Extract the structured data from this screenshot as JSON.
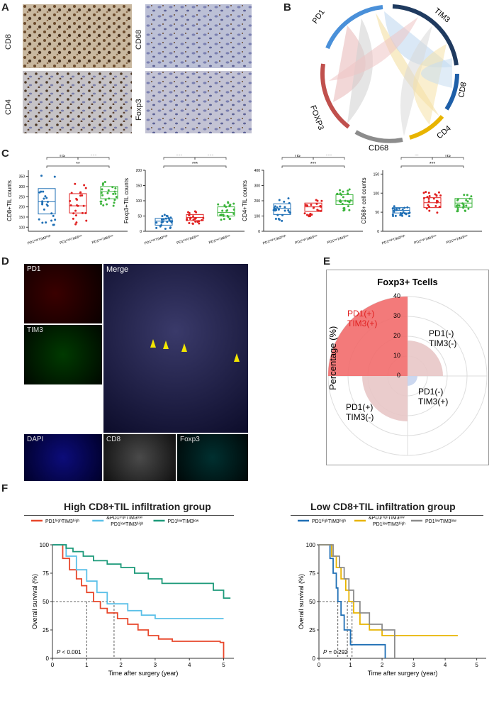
{
  "panels": {
    "A": "A",
    "B": "B",
    "C": "C",
    "D": "D",
    "E": "E",
    "F": "F"
  },
  "panel_a": {
    "labels": [
      "CD8",
      "CD68",
      "CD4",
      "Foxp3"
    ]
  },
  "panel_b": {
    "segments": [
      "PD1",
      "TIM3",
      "CD8",
      "CD4",
      "CD68",
      "FOXP3"
    ],
    "colors": {
      "PD1": "#4a90d9",
      "TIM3": "#1f3a5f",
      "CD8": "#1e5fa8",
      "CD4": "#e8b400",
      "CD68": "#8c8c8c",
      "FOXP3": "#c0504d"
    }
  },
  "panel_c": {
    "groups_short": [
      "PD1ʰⁱᵍʰTIM3ʰⁱᵍʰ",
      "PD1ʰⁱᵍʰTIM3ˡᵒʷ / PD1ˡᵒʷTIM3ʰⁱᵍʰ",
      "PD1ˡᵒʷTIM3ˡᵒʷ"
    ],
    "ns": "ns",
    "two_star": "**",
    "three_star": "***"
  },
  "panel_d": {
    "labels": [
      "PD1",
      "Merge",
      "TIM3",
      "DAPI",
      "CD8",
      "Foxp3"
    ]
  },
  "panel_e": {
    "title": "Foxp3+ Tcells",
    "ylabel": "Percentage (%)",
    "ticks": [
      "0",
      "10",
      "20",
      "30",
      "40"
    ],
    "label_pp_1": "PD1(+)",
    "label_pp_2": "TIM3(+)",
    "label_nn_1": "PD1(-)",
    "label_nn_2": "TIM3(-)",
    "label_np_1": "PD1(-)",
    "label_np_2": "TIM3(+)",
    "label_pn_1": "PD1(+)",
    "label_pn_2": "TIM3(-)"
  },
  "panel_f": {
    "left_title": "High CD8+TIL infiltration group",
    "right_title": "Low CD8+TIL infiltration group",
    "ylabel": "Overall survival (%)",
    "xlabel": "Time after surgery (year)",
    "left_p": "< 0.001",
    "right_p": "= 0.292",
    "p_letter": "P",
    "legend_left": [
      "PD1ʰⁱᵍʰTIM3ʰⁱᵍʰ",
      "&",
      "PD1ʰⁱᵍʰTIM3ˡᵒʷ",
      "PD1ˡᵒʷTIM3ʰⁱᵍʰ",
      "PD1ˡᵒʷTIM3ˡᵒʷ"
    ],
    "legend_right": [
      "PD1ʰⁱᵍʰTIM3ʰⁱᵍʰ",
      "&",
      "PD1ʰⁱᵍʰTIM3ˡᵒʷ",
      "PD1ˡᵒʷTIM3ʰⁱᵍʰ",
      "PD1ˡᵒʷTIM3ˡᵒʷ"
    ]
  },
  "chart_data": [
    {
      "type": "scatter",
      "ylabel": "CD8+TIL counts",
      "categories": [
        "PD1ʰⁱᵍʰTIM3ʰⁱᵍʰ",
        "PD1ʰⁱᵍʰTIM3ˡᵒʷ & PD1ˡᵒʷTIM3ʰⁱᵍʰ",
        "PD1ˡᵒʷTIM3ˡᵒʷ"
      ],
      "yticks": [
        "100",
        "150",
        "200",
        "250",
        "300",
        "350"
      ],
      "ylim": [
        80,
        380
      ],
      "boxes": [
        {
          "q1": 165,
          "median": 225,
          "q3": 290
        },
        {
          "q1": 170,
          "median": 205,
          "q3": 265
        },
        {
          "q1": 240,
          "median": 275,
          "q3": 300
        }
      ],
      "comparisons": [
        "ns",
        "***",
        "**"
      ]
    },
    {
      "type": "scatter",
      "ylabel": "Foxp3+TIL counts",
      "categories": [
        "PD1ʰⁱᵍʰTIM3ʰⁱᵍʰ",
        "PD1ʰⁱᵍʰTIM3ˡᵒʷ & PD1ˡᵒʷTIM3ʰⁱᵍʰ",
        "PD1ˡᵒʷTIM3ˡᵒʷ"
      ],
      "yticks": [
        "0",
        "50",
        "100",
        "150",
        "200"
      ],
      "ylim": [
        0,
        200
      ],
      "boxes": [
        {
          "q1": 20,
          "median": 33,
          "q3": 42
        },
        {
          "q1": 35,
          "median": 45,
          "q3": 55
        },
        {
          "q1": 50,
          "median": 62,
          "q3": 80
        }
      ],
      "comparisons": [
        "***",
        "***",
        "***"
      ]
    },
    {
      "type": "scatter",
      "ylabel": "CD4+TIL counts",
      "categories": [
        "PD1ʰⁱᵍʰTIM3ʰⁱᵍʰ",
        "PD1ʰⁱᵍʰTIM3ˡᵒʷ & PD1ˡᵒʷTIM3ʰⁱᵍʰ",
        "PD1ˡᵒʷTIM3ˡᵒʷ"
      ],
      "yticks": [
        "0",
        "100",
        "200",
        "300",
        "400"
      ],
      "ylim": [
        0,
        400
      ],
      "boxes": [
        {
          "q1": 110,
          "median": 150,
          "q3": 180
        },
        {
          "q1": 130,
          "median": 160,
          "q3": 185
        },
        {
          "q1": 175,
          "median": 200,
          "q3": 240
        }
      ],
      "comparisons": [
        "ns",
        "***",
        "***"
      ]
    },
    {
      "type": "scatter",
      "ylabel": "CD68+ cell counts",
      "categories": [
        "PD1ʰⁱᵍʰTIM3ʰⁱᵍʰ",
        "PD1ʰⁱᵍʰTIM3ˡᵒʷ & PD1ˡᵒʷTIM3ʰⁱᵍʰ",
        "PD1ˡᵒʷTIM3ˡᵒʷ"
      ],
      "yticks": [
        "0",
        "50",
        "100",
        "150"
      ],
      "ylim": [
        0,
        160
      ],
      "boxes": [
        {
          "q1": 48,
          "median": 55,
          "q3": 62
        },
        {
          "q1": 62,
          "median": 75,
          "q3": 88
        },
        {
          "q1": 63,
          "median": 74,
          "q3": 86
        }
      ],
      "comparisons": [
        "**",
        "ns",
        "***"
      ]
    },
    {
      "type": "pie",
      "title": "Foxp3+ Tcells",
      "categories": [
        "PD1(+) TIM3(+)",
        "PD1(-) TIM3(-)",
        "PD1(-) TIM3(+)",
        "PD1(+) TIM3(-)"
      ],
      "values": [
        40,
        18,
        5,
        23
      ],
      "ylim": [
        0,
        40
      ]
    },
    {
      "type": "line",
      "title": "High CD8+TIL infiltration group",
      "xlabel": "Time after surgery (year)",
      "ylabel": "Overall survival (%)",
      "xticks": [
        "0",
        "1",
        "2",
        "3",
        "4",
        "5"
      ],
      "yticks": [
        "0",
        "25",
        "50",
        "75",
        "100"
      ],
      "series": [
        {
          "name": "PD1ʰⁱᵍʰTIM3ʰⁱᵍʰ",
          "color": "#e8472b",
          "x": [
            0,
            0.3,
            0.5,
            0.7,
            0.85,
            1.0,
            1.2,
            1.4,
            1.6,
            1.9,
            2.2,
            2.5,
            2.8,
            3.1,
            3.5,
            4.9,
            5.0
          ],
          "y": [
            100,
            88,
            78,
            70,
            64,
            58,
            50,
            44,
            40,
            35,
            30,
            25,
            20,
            17,
            15,
            14,
            0
          ]
        },
        {
          "name": "PD1ʰⁱᵍʰTIM3ˡᵒʷ & PD1ˡᵒʷTIM3ʰⁱᵍʰ",
          "color": "#5bc0e8",
          "x": [
            0,
            0.4,
            0.7,
            1.0,
            1.3,
            1.6,
            2.2,
            2.6,
            3.0,
            5.0
          ],
          "y": [
            100,
            90,
            78,
            68,
            58,
            48,
            42,
            38,
            35,
            35
          ]
        },
        {
          "name": "PD1ˡᵒʷTIM3ˡᵒʷ",
          "color": "#1d9a7a",
          "x": [
            0,
            0.4,
            0.6,
            0.9,
            1.2,
            1.6,
            2.0,
            2.4,
            2.8,
            3.2,
            4.7,
            5.0,
            5.2
          ],
          "y": [
            100,
            97,
            94,
            90,
            86,
            83,
            80,
            75,
            70,
            66,
            60,
            53,
            53
          ]
        }
      ]
    },
    {
      "type": "line",
      "title": "Low CD8+TIL infiltration group",
      "xlabel": "Time after surgery (year)",
      "ylabel": "Overall survival (%)",
      "xticks": [
        "0",
        "1",
        "2",
        "3",
        "4",
        "5"
      ],
      "yticks": [
        "0",
        "25",
        "50",
        "75",
        "100"
      ],
      "series": [
        {
          "name": "PD1ʰⁱᵍʰTIM3ʰⁱᵍʰ",
          "color": "#1f6fb5",
          "x": [
            0,
            0.35,
            0.45,
            0.55,
            0.6,
            0.7,
            0.8,
            1.0,
            2.1
          ],
          "y": [
            100,
            88,
            75,
            62,
            50,
            38,
            25,
            12,
            0
          ]
        },
        {
          "name": "PD1ʰⁱᵍʰTIM3ˡᵒʷ & PD1ˡᵒʷTIM3ʰⁱᵍʰ",
          "color": "#e8b400",
          "x": [
            0,
            0.4,
            0.55,
            0.7,
            0.85,
            0.95,
            1.1,
            1.3,
            1.6,
            2.0,
            4.4
          ],
          "y": [
            100,
            90,
            80,
            70,
            60,
            50,
            40,
            30,
            25,
            20,
            20
          ]
        },
        {
          "name": "PD1ˡᵒʷTIM3ˡᵒʷ",
          "color": "#8c8c8c",
          "x": [
            0,
            0.45,
            0.65,
            0.8,
            0.95,
            1.1,
            1.3,
            1.6,
            2.0,
            2.4
          ],
          "y": [
            100,
            90,
            80,
            70,
            60,
            50,
            40,
            30,
            25,
            0
          ]
        }
      ]
    }
  ]
}
